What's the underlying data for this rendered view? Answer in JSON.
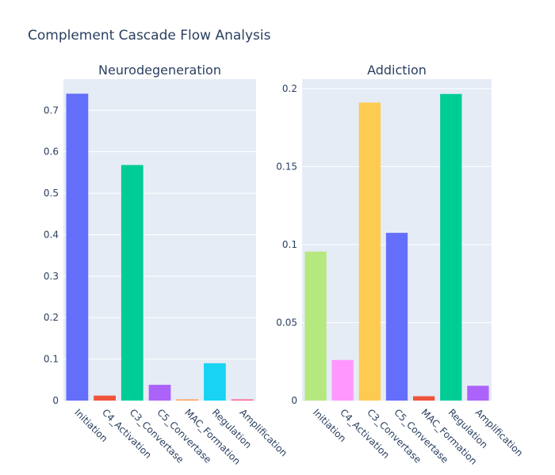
{
  "title": "Complement Cascade Flow Analysis",
  "colors": {
    "plot_bg": "#E5ECF6",
    "grid": "#ffffff",
    "text": "#2a3f5f"
  },
  "chart_data": [
    {
      "type": "bar",
      "title": "Neurodegeneration",
      "categories": [
        "Initiation",
        "C4_Activation",
        "C3_Convertase",
        "C5_Convertase",
        "MAC_Formation",
        "Regulation",
        "Amplification"
      ],
      "values": [
        0.74,
        0.012,
        0.568,
        0.038,
        0.003,
        0.09,
        0.003
      ],
      "colors": [
        "#636EFA",
        "#EF553B",
        "#00CC96",
        "#AB63FA",
        "#FFA15A",
        "#19D3F3",
        "#FF6692"
      ],
      "ylim": [
        0,
        0.775
      ],
      "yticks": [
        0,
        0.1,
        0.2,
        0.3,
        0.4,
        0.5,
        0.6,
        0.7
      ],
      "ytick_labels": [
        "0",
        "0.1",
        "0.2",
        "0.3",
        "0.4",
        "0.5",
        "0.6",
        "0.7"
      ],
      "grid": true
    },
    {
      "type": "bar",
      "title": "Addiction",
      "categories": [
        "Initiation",
        "C4_Activation",
        "C3_Convertase",
        "C5_Convertase",
        "MAC_Formation",
        "Regulation",
        "Amplification"
      ],
      "values": [
        0.0955,
        0.026,
        0.191,
        0.1075,
        0.0028,
        0.1965,
        0.0095
      ],
      "colors": [
        "#B6E880",
        "#FF97FF",
        "#FECB52",
        "#636EFA",
        "#EF553B",
        "#00CC96",
        "#AB63FA"
      ],
      "ylim": [
        0,
        0.206
      ],
      "yticks": [
        0,
        0.05,
        0.1,
        0.15,
        0.2
      ],
      "ytick_labels": [
        "0",
        "0.05",
        "0.1",
        "0.15",
        "0.2"
      ],
      "grid": true
    }
  ]
}
